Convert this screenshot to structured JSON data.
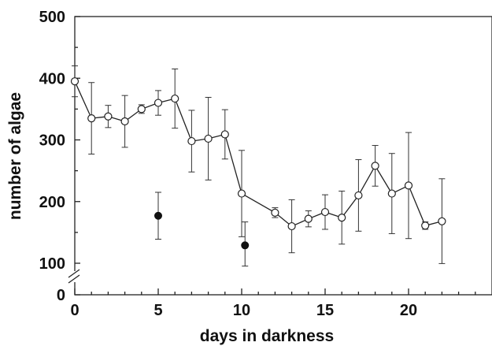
{
  "chart_data": {
    "type": "scatter",
    "title": "",
    "xlabel": "days  in darkness",
    "ylabel": "number of algae",
    "xlim": [
      0,
      25
    ],
    "ylim": [
      0,
      500
    ],
    "y_axis_break": [
      0,
      100
    ],
    "x_ticks": [
      0,
      5,
      10,
      15,
      20
    ],
    "x_tick_labels": [
      "0",
      "5",
      "10",
      "15",
      "20"
    ],
    "y_ticks": [
      0,
      100,
      200,
      300,
      400,
      500
    ],
    "y_tick_labels": [
      "0",
      "100",
      "200",
      "300",
      "400",
      "500"
    ],
    "grid": false,
    "series": [
      {
        "marker": "open-circle",
        "connected": true,
        "points": [
          {
            "x": 0,
            "y": 395,
            "err": 25
          },
          {
            "x": 1,
            "y": 335,
            "err": 58
          },
          {
            "x": 2,
            "y": 338,
            "err": 18
          },
          {
            "x": 3,
            "y": 330,
            "err": 42
          },
          {
            "x": 4,
            "y": 350,
            "err": 7
          },
          {
            "x": 5,
            "y": 360,
            "err": 20
          },
          {
            "x": 6,
            "y": 367,
            "err": 48
          },
          {
            "x": 7,
            "y": 298,
            "err": 50
          },
          {
            "x": 8,
            "y": 302,
            "err": 67
          },
          {
            "x": 9,
            "y": 309,
            "err": 40
          },
          {
            "x": 10,
            "y": 213,
            "err": 70
          },
          {
            "x": 12,
            "y": 182,
            "err": 8
          },
          {
            "x": 13,
            "y": 160,
            "err": 43
          },
          {
            "x": 14,
            "y": 172,
            "err": 13
          },
          {
            "x": 15,
            "y": 183,
            "err": 28
          },
          {
            "x": 16,
            "y": 174,
            "err": 43
          },
          {
            "x": 17,
            "y": 210,
            "err": 58
          },
          {
            "x": 18,
            "y": 258,
            "err": 33
          },
          {
            "x": 19,
            "y": 213,
            "err": 65
          },
          {
            "x": 20,
            "y": 226,
            "err": 86
          },
          {
            "x": 21,
            "y": 161,
            "err": 6
          },
          {
            "x": 22,
            "y": 168,
            "err": 69
          }
        ]
      },
      {
        "marker": "filled-circle",
        "connected": false,
        "points": [
          {
            "x": 5,
            "y": 177,
            "err": 38
          },
          {
            "x": 10.2,
            "y": 129,
            "err": 38
          }
        ]
      }
    ]
  }
}
